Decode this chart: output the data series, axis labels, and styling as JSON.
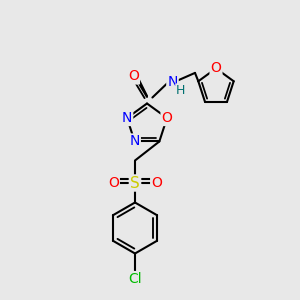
{
  "bg_color": "#e8e8e8",
  "bond_color": "#000000",
  "bond_width": 1.5,
  "atoms": {
    "Cl": {
      "color": "#00bb00",
      "fontsize": 10
    },
    "O": {
      "color": "#ff0000",
      "fontsize": 10
    },
    "N": {
      "color": "#0000ff",
      "fontsize": 10
    },
    "S": {
      "color": "#cccc00",
      "fontsize": 11
    },
    "H": {
      "color": "#007070",
      "fontsize": 9
    }
  },
  "figsize": [
    3.0,
    3.0
  ],
  "dpi": 100,
  "xlim": [
    0,
    10
  ],
  "ylim": [
    0,
    10
  ]
}
